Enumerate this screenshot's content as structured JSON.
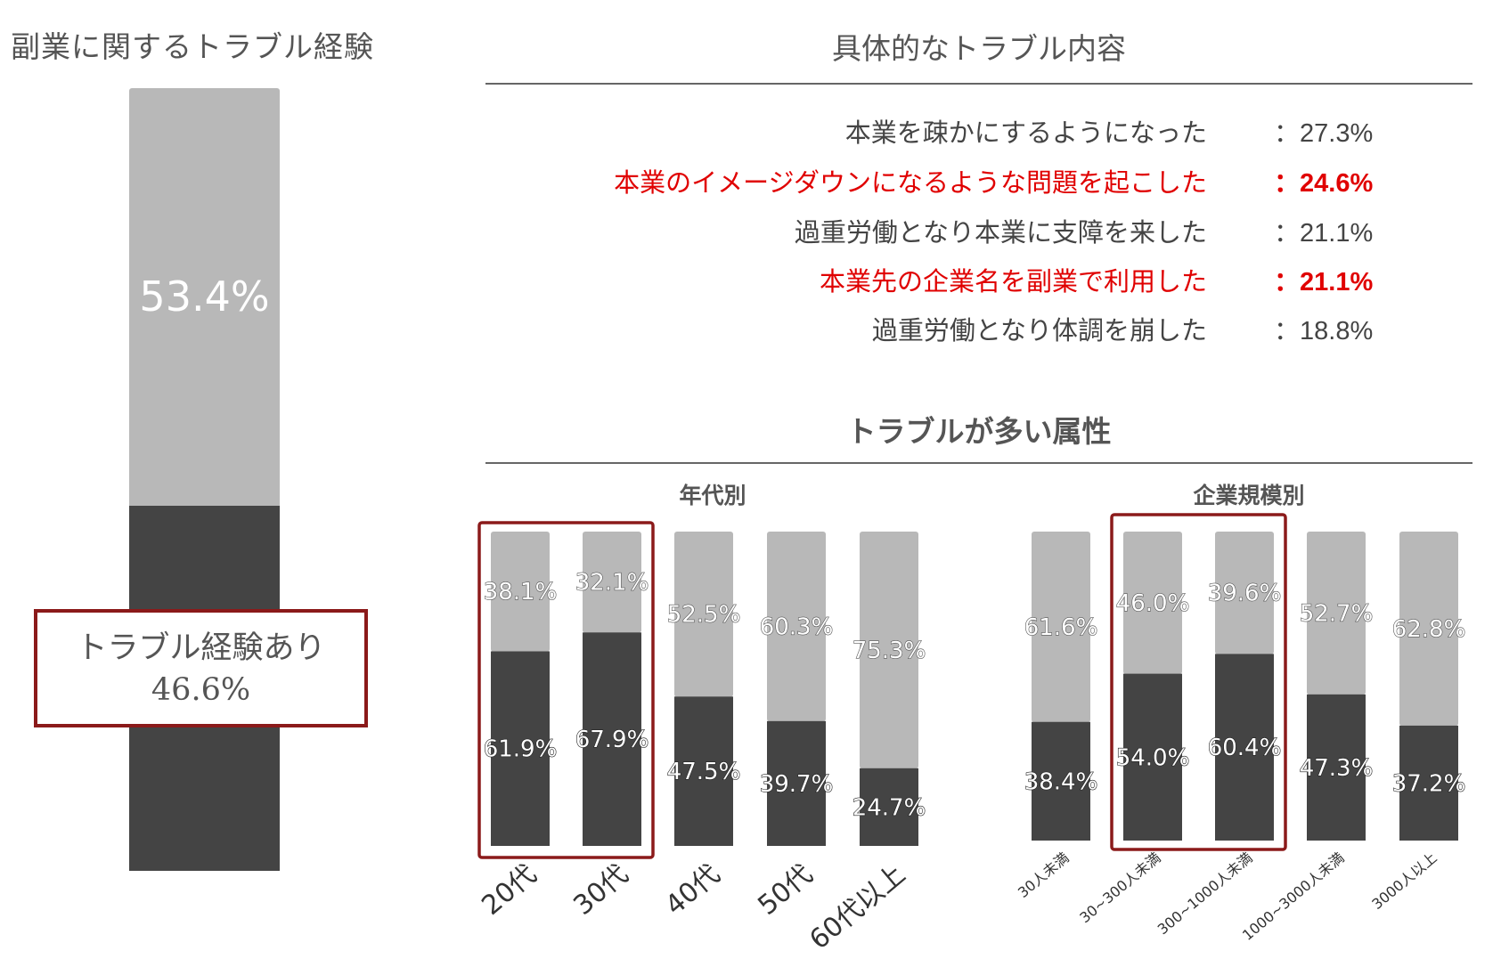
{
  "left": {
    "title": "副業に関するトラブル経験",
    "no_trouble_pct": "53.4%",
    "trouble_label": "トラブル経験あり",
    "trouble_pct": "46.6%"
  },
  "details": {
    "title": "具体的なトラブル内容",
    "rows": [
      {
        "label": "本業を疎かにするようになった",
        "value": "：27.3%",
        "highlight": false
      },
      {
        "label": "本業のイメージダウンになるような問題を起こした",
        "value": "：24.6%",
        "highlight": true
      },
      {
        "label": "過重労働となり本業に支障を来した",
        "value": "：21.1%",
        "highlight": false
      },
      {
        "label": "本業先の企業名を副業で利用した",
        "value": "：21.1%",
        "highlight": true
      },
      {
        "label": "過重労働となり体調を崩した",
        "value": "：18.8%",
        "highlight": false
      }
    ]
  },
  "attributes": {
    "title": "トラブルが多い属性"
  },
  "colors": {
    "light": "#b8b8b8",
    "dark": "#444444",
    "accent": "#8b1a1a",
    "highlight_text": "#e00000"
  },
  "chart_data": [
    {
      "type": "bar",
      "title": "副業に関するトラブル経験",
      "categories": [
        ""
      ],
      "series": [
        {
          "name": "トラブル経験あり",
          "values": [
            46.6
          ]
        },
        {
          "values": [
            53.4
          ]
        }
      ],
      "stacked": true,
      "ylim": [
        0,
        100
      ]
    },
    {
      "type": "bar",
      "title": "年代別",
      "categories": [
        "20代",
        "30代",
        "40代",
        "50代",
        "60代以上"
      ],
      "series": [
        {
          "values": [
            61.9,
            67.9,
            47.5,
            39.7,
            24.7
          ]
        },
        {
          "values": [
            38.1,
            32.1,
            52.5,
            60.3,
            75.3
          ]
        }
      ],
      "labels_dark": [
        "61.9%",
        "67.9%",
        "47.5%",
        "39.7%",
        "24.7%"
      ],
      "labels_light": [
        "38.1%",
        "32.1%",
        "52.5%",
        "60.3%",
        "75.3%"
      ],
      "highlighted": [
        0,
        1
      ],
      "stacked": true,
      "ylim": [
        0,
        100
      ]
    },
    {
      "type": "bar",
      "title": "企業規模別",
      "categories": [
        "30人未満",
        "30~300人未満",
        "300~1000人未満",
        "1000~3000人未満",
        "3000人以上"
      ],
      "series": [
        {
          "values": [
            38.4,
            54.0,
            60.4,
            47.3,
            37.2
          ]
        },
        {
          "values": [
            61.6,
            46.0,
            39.6,
            52.7,
            62.8
          ]
        }
      ],
      "labels_dark": [
        "38.4%",
        "54.0%",
        "60.4%",
        "47.3%",
        "37.2%"
      ],
      "labels_light": [
        "61.6%",
        "46.0%",
        "39.6%",
        "52.7%",
        "62.8%"
      ],
      "highlighted": [
        1,
        2
      ],
      "stacked": true,
      "ylim": [
        0,
        100
      ]
    }
  ]
}
